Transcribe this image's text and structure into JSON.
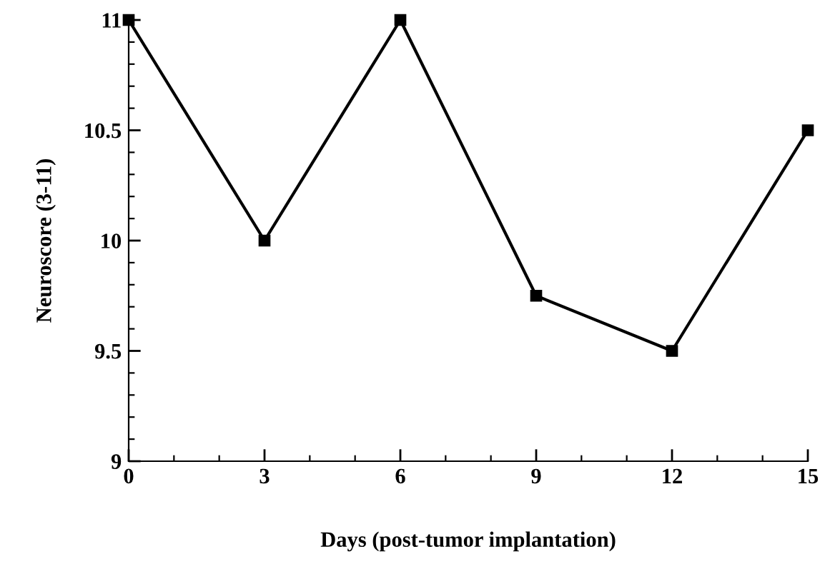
{
  "chart_data": {
    "type": "line",
    "xlabel": "Days (post-tumor implantation)",
    "ylabel": "Neuroscore (3-11)",
    "x": [
      0,
      3,
      6,
      9,
      12,
      15
    ],
    "series": [
      {
        "color": "#000000",
        "values": [
          11,
          10,
          11,
          9.75,
          9.5,
          10.5
        ]
      }
    ],
    "xlim": [
      0,
      15
    ],
    "ylim": [
      9,
      11
    ],
    "xticks": [
      0,
      3,
      6,
      9,
      12,
      15
    ],
    "yticks": [
      9,
      9.5,
      10,
      10.5,
      11
    ],
    "marker": "square",
    "line_style": "solid",
    "grid": false,
    "legend": false
  }
}
